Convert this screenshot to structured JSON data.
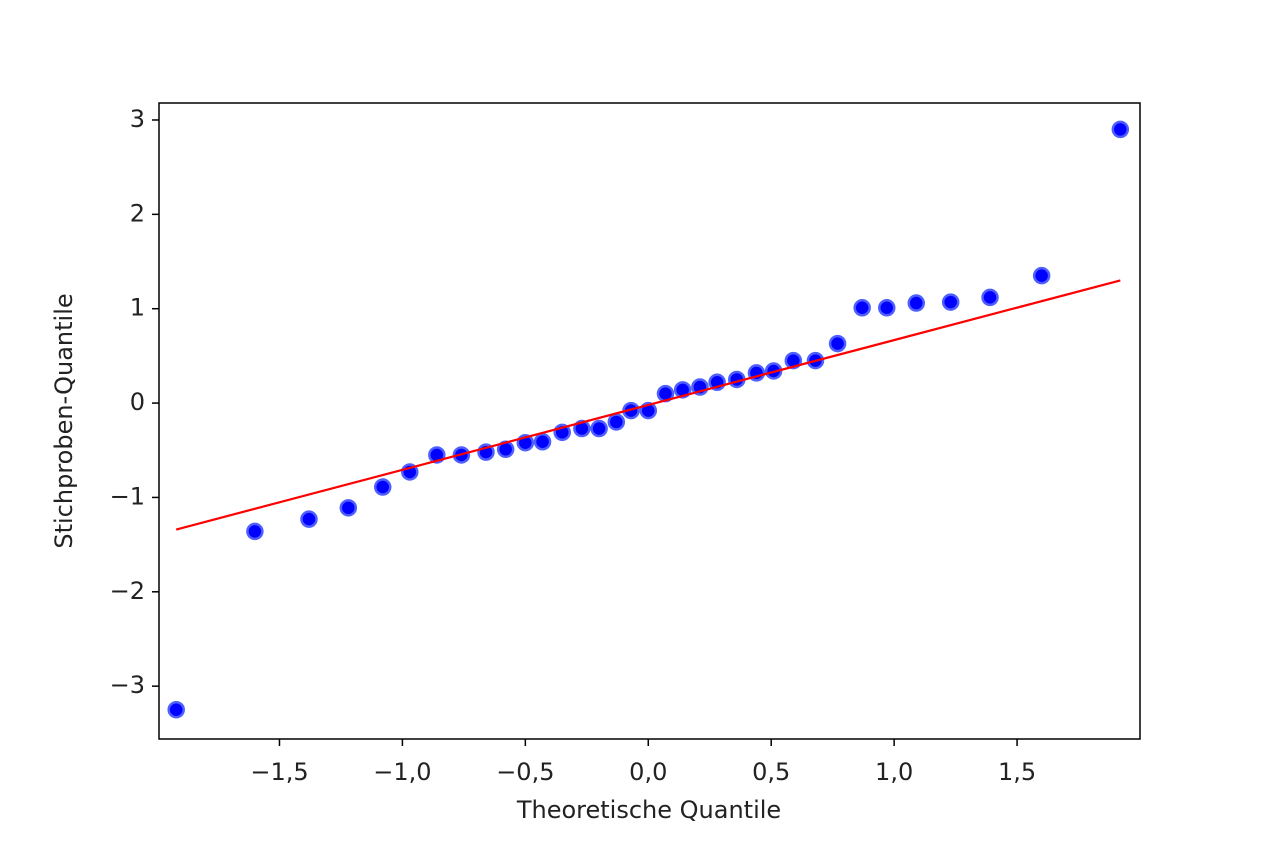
{
  "chart_data": {
    "type": "scatter",
    "x_label": "Theoretische Quantile",
    "y_label": "Stichproben-Quantile",
    "x": [
      -1.92,
      -1.6,
      -1.38,
      -1.22,
      -1.08,
      -0.97,
      -0.86,
      -0.76,
      -0.66,
      -0.58,
      -0.5,
      -0.43,
      -0.35,
      -0.27,
      -0.2,
      -0.13,
      -0.07,
      0.0,
      0.07,
      0.14,
      0.21,
      0.28,
      0.36,
      0.44,
      0.51,
      0.59,
      0.68,
      0.77,
      0.87,
      0.97,
      1.09,
      1.23,
      1.39,
      1.6,
      1.92
    ],
    "values": [
      -3.25,
      -1.36,
      -1.23,
      -1.11,
      -0.89,
      -0.73,
      -0.55,
      -0.55,
      -0.52,
      -0.49,
      -0.42,
      -0.41,
      -0.31,
      -0.27,
      -0.27,
      -0.2,
      -0.08,
      -0.08,
      0.1,
      0.14,
      0.17,
      0.22,
      0.25,
      0.32,
      0.34,
      0.45,
      0.45,
      0.63,
      1.01,
      1.01,
      1.06,
      1.07,
      1.12,
      1.35,
      2.9
    ],
    "color": "#0000ff",
    "reference_line": {
      "x": [
        -1.92,
        1.92
      ],
      "values": [
        -1.34,
        1.3
      ],
      "color": "#ff0000"
    },
    "xlim": [
      -1.99,
      2.0
    ],
    "ylim": [
      -3.56,
      3.18
    ],
    "xticks": [
      {
        "value": -1.5,
        "label": "−1,5"
      },
      {
        "value": -1.0,
        "label": "−1,0"
      },
      {
        "value": -0.5,
        "label": "−0,5"
      },
      {
        "value": 0.0,
        "label": "0,0"
      },
      {
        "value": 0.5,
        "label": "0,5"
      },
      {
        "value": 1.0,
        "label": "1,0"
      },
      {
        "value": 1.5,
        "label": "1,5"
      }
    ],
    "yticks": [
      {
        "value": -3,
        "label": "−3"
      },
      {
        "value": -2,
        "label": "−2"
      },
      {
        "value": -1,
        "label": "−1"
      },
      0,
      1,
      2,
      3
    ],
    "grid": false
  }
}
